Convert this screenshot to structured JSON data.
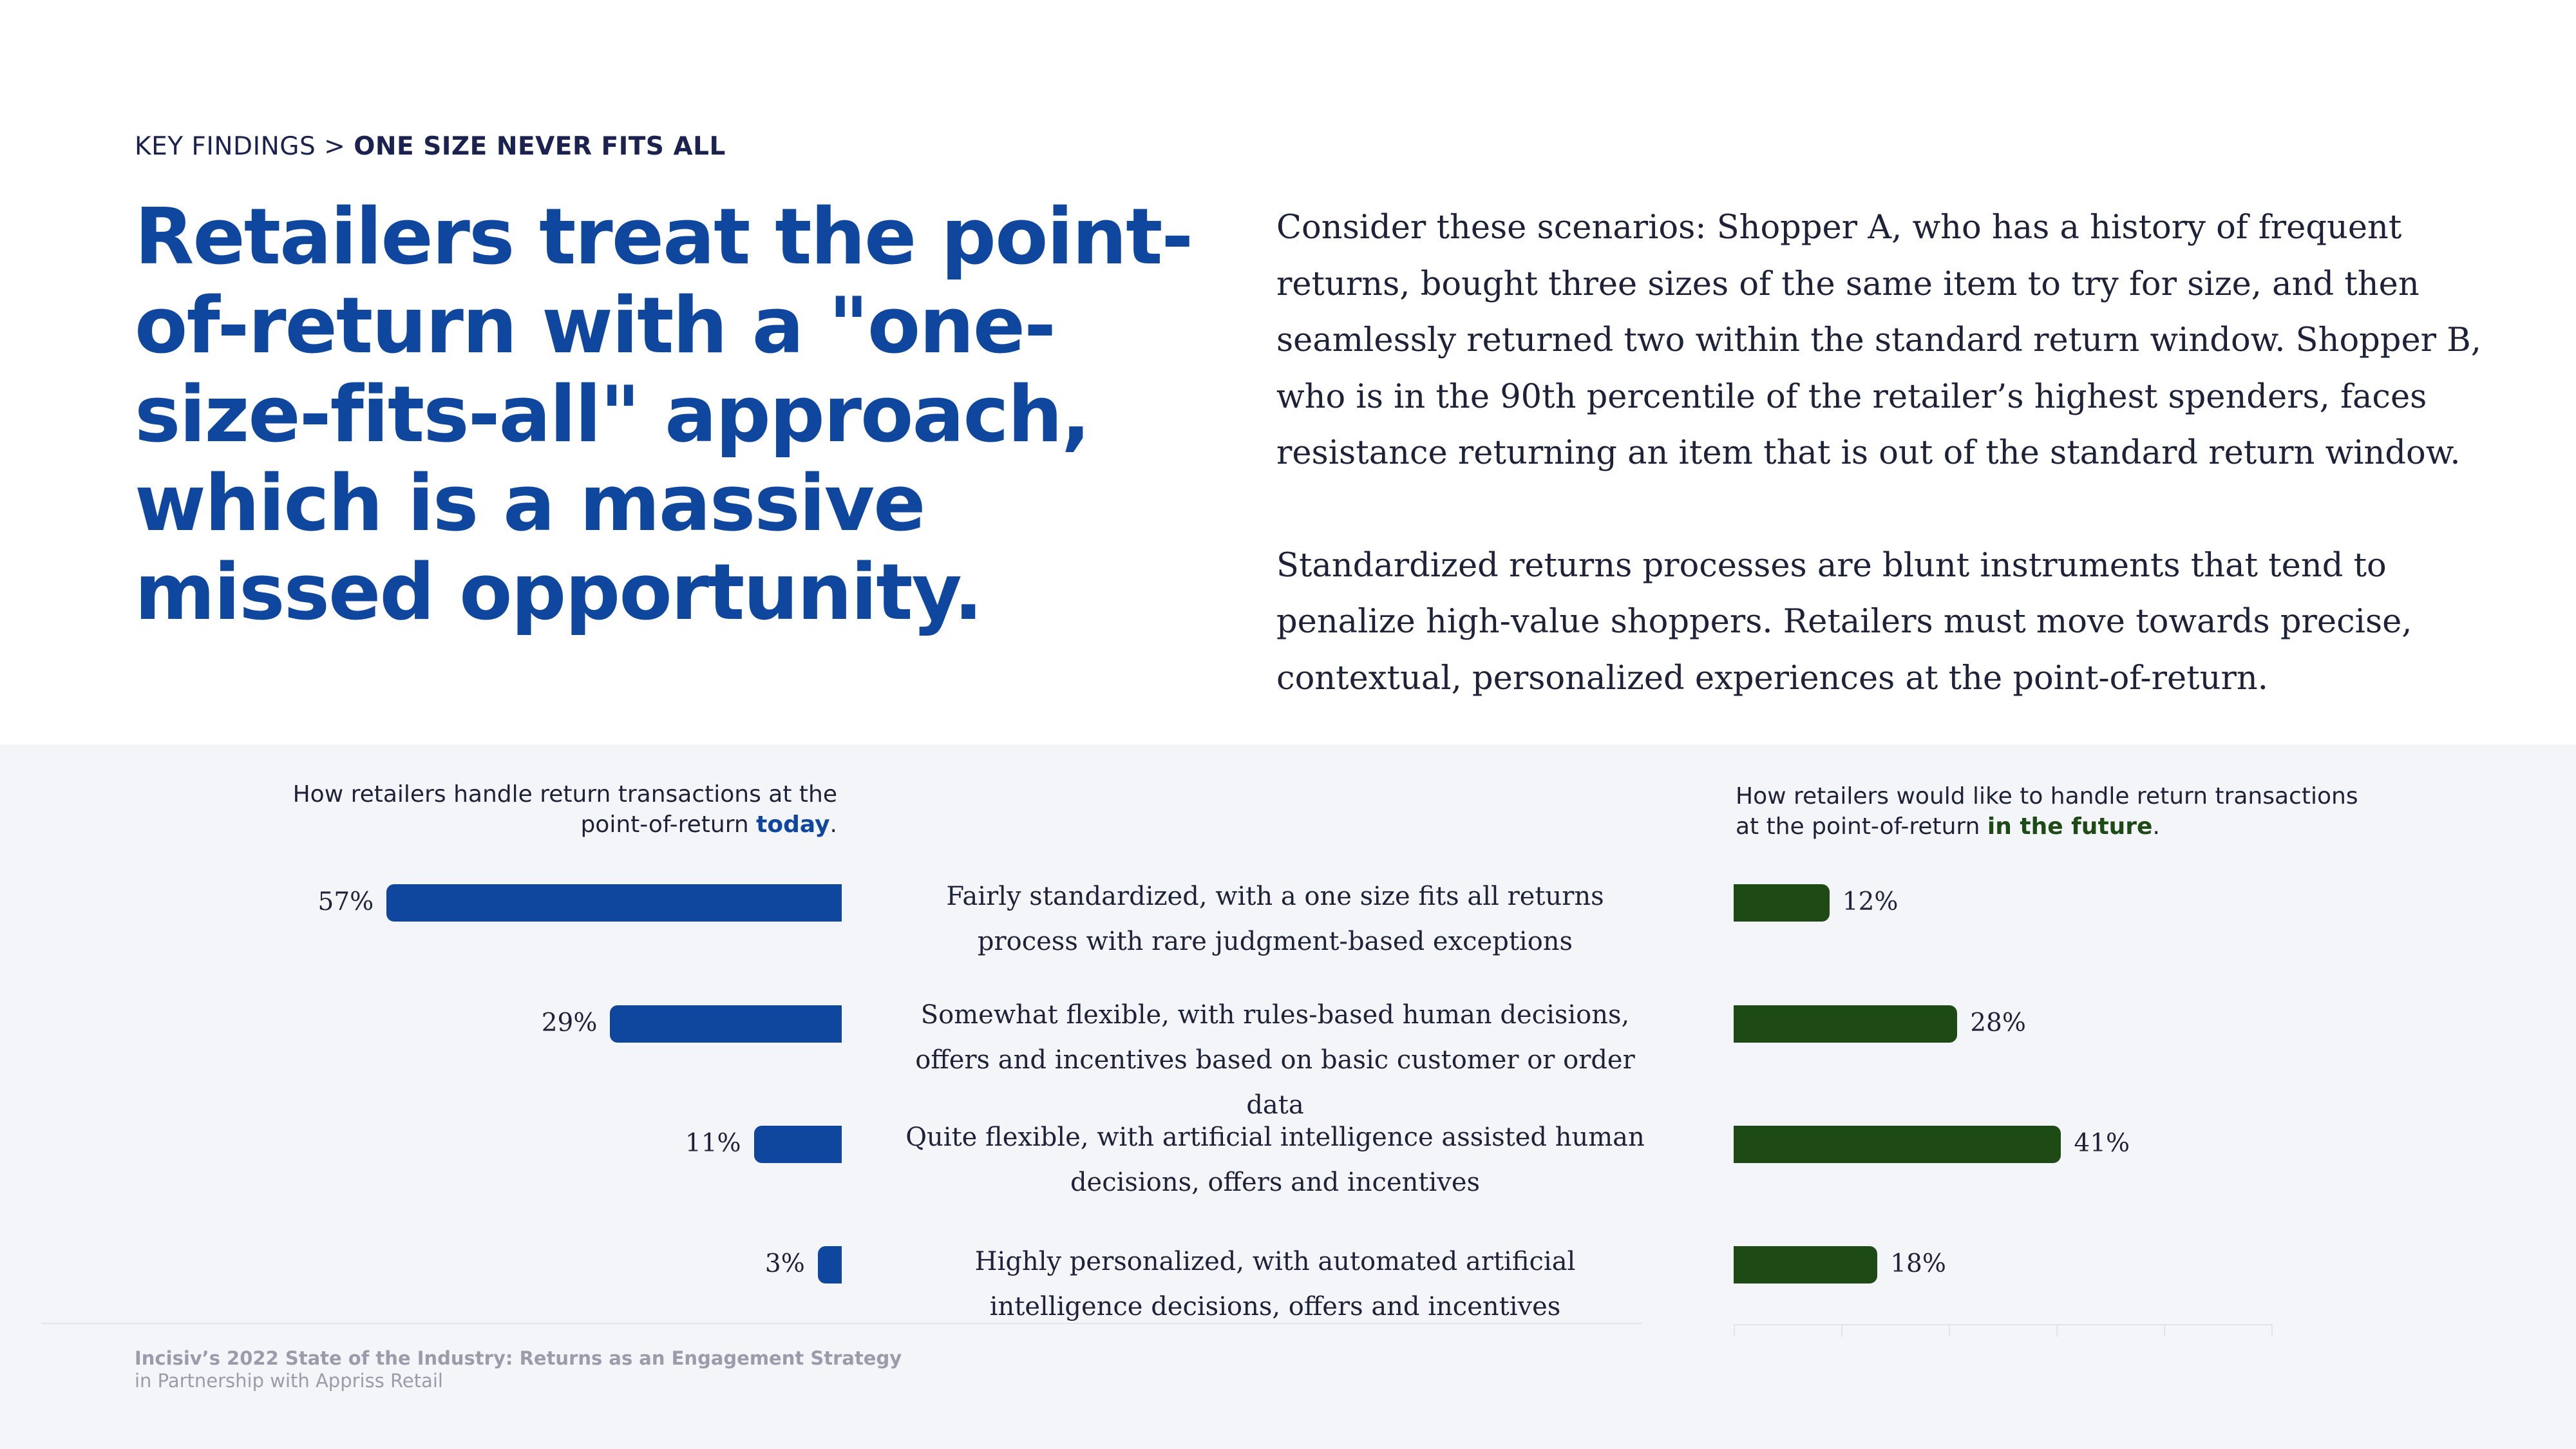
{
  "breadcrumb": {
    "section": "KEY FINDINGS",
    "separator": ">",
    "current": "ONE SIZE NEVER FITS ALL"
  },
  "headline": "Retailers treat the point-of-return with a \"one-size-fits-all\" approach, which is a massive missed opportunity.",
  "body": {
    "paragraph1": "Consider these scenarios: Shopper A, who has a history of frequent returns, bought three sizes of the same item to try for size, and then seamlessly returned two within the standard return window. Shopper B, who is in the 90th percentile of the retailer’s highest spenders, faces resistance returning an item that is out of the standard return window.",
    "paragraph2": "Standardized returns processes are blunt instruments that tend to penalize high-value shoppers. Retailers must move towards precise, contextual, personalized experiences at the point-of-return."
  },
  "colors": {
    "today": "#0f479e",
    "future": "#1e4a15",
    "panel": "#f4f5f8"
  },
  "chart_data": [
    {
      "type": "bar",
      "orientation": "horizontal",
      "title_prefix": "How retailers handle return transactions at the point-of-return ",
      "title_highlight": "today",
      "title_suffix": ".",
      "categories": [
        "Fairly standardized, with a one size fits all returns process with rare judgment-based exceptions",
        "Somewhat flexible, with rules-based human decisions, offers and incentives based on basic customer or order data",
        "Quite flexible, with artificial intelligence assisted human decisions, offers and incentives",
        "Highly personalized, with automated artificial intelligence decisions, offers and incentives"
      ],
      "values": [
        57,
        29,
        11,
        3
      ],
      "labels": [
        "57%",
        "29%",
        "11%",
        "3%"
      ],
      "unit": "%",
      "direction": "right-to-left",
      "xlim": [
        0,
        100
      ]
    },
    {
      "type": "bar",
      "orientation": "horizontal",
      "title_prefix": "How retailers would like to handle return transactions at the point-of-return ",
      "title_highlight": "in the future",
      "title_suffix": ".",
      "categories": [
        "Fairly standardized, with a one size fits all returns process with rare judgment-based exceptions",
        "Somewhat flexible, with rules-based human decisions, offers and incentives based on basic customer or order data",
        "Quite flexible, with artificial intelligence assisted human decisions, offers and incentives",
        "Highly personalized, with automated artificial intelligence decisions, offers and incentives"
      ],
      "values": [
        12,
        28,
        41,
        18
      ],
      "labels": [
        "12%",
        "28%",
        "41%",
        "18%"
      ],
      "unit": "%",
      "direction": "left-to-right",
      "xlim": [
        0,
        100
      ]
    }
  ],
  "categories_display": [
    "Fairly standardized, with a one size fits all returns process with rare judgment-based exceptions",
    "Somewhat flexible, with rules-based human decisions, offers and incentives based on basic customer or order data",
    "Quite flexible, with artificial intelligence assisted human decisions, offers and incentives",
    "Highly personalized, with automated artificial intelligence decisions, offers and incentives"
  ],
  "footer": {
    "title": "Incisiv’s 2022 State of the Industry: Returns as an Engagement Strategy",
    "subtitle": "in Partnership with Appriss Retail"
  }
}
